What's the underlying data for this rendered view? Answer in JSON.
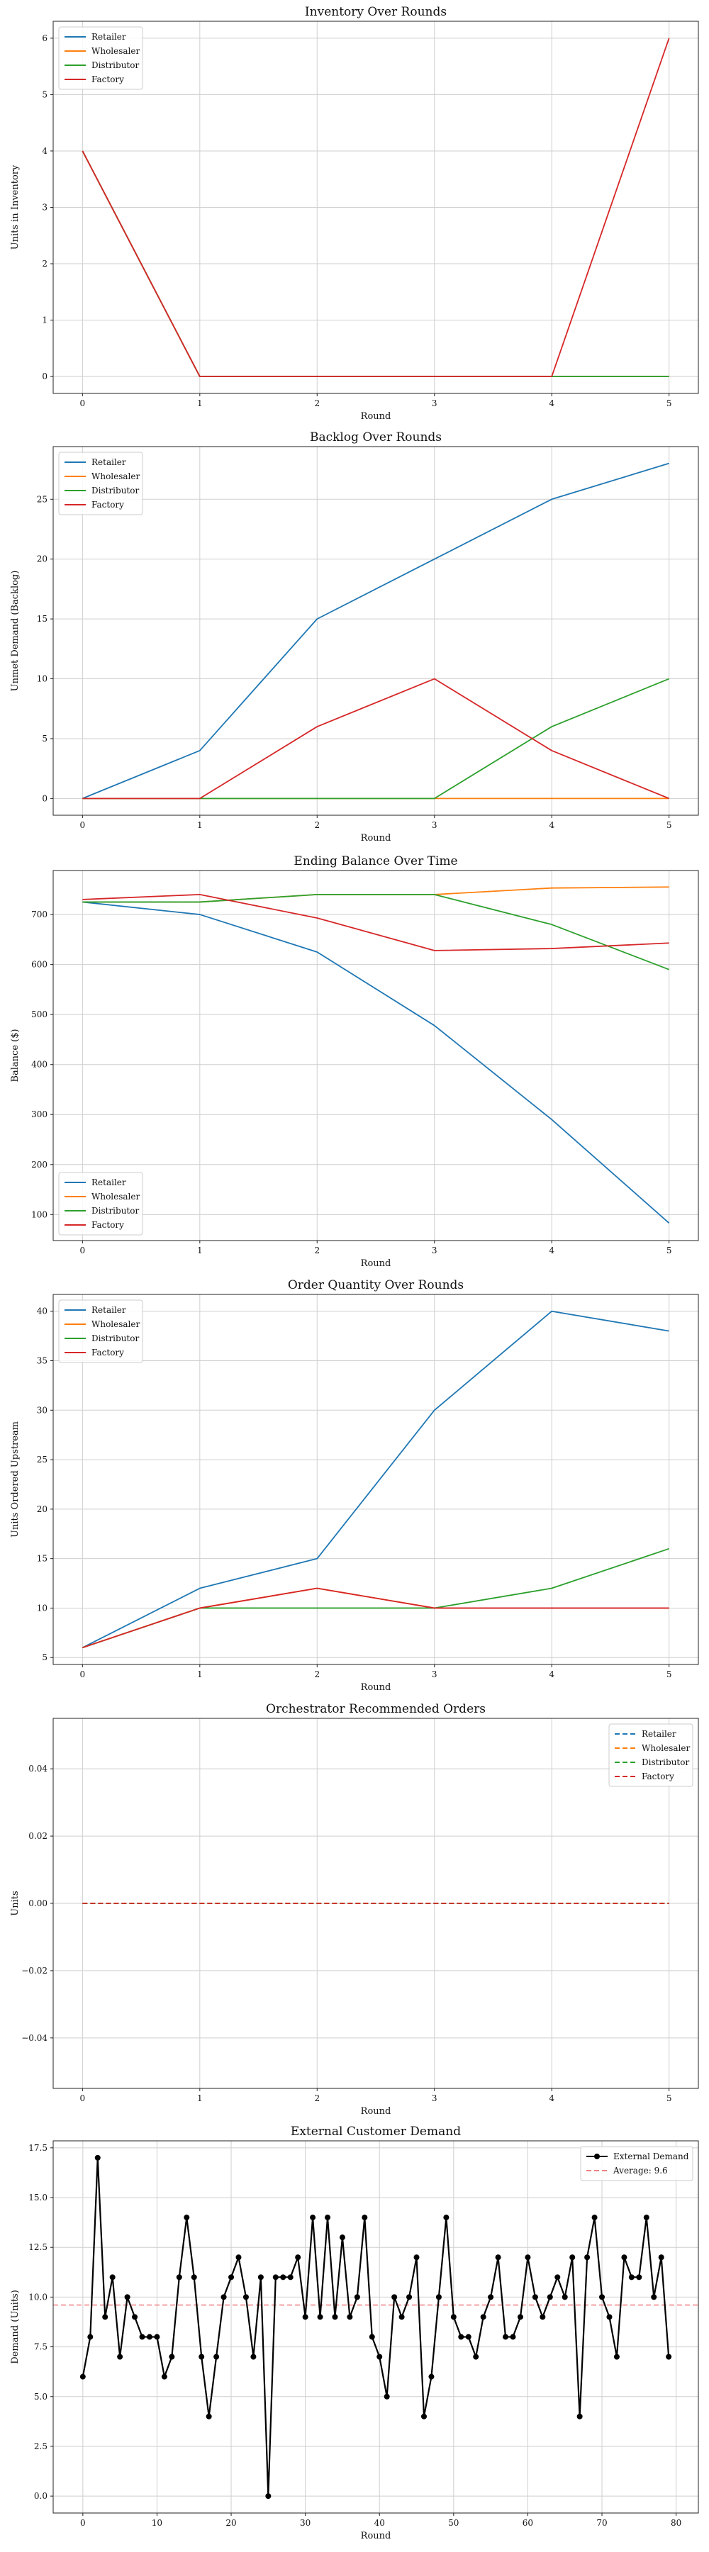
{
  "chart_data": [
    {
      "type": "line",
      "title": "Inventory Over Rounds",
      "xlabel": "Round",
      "ylabel": "Units in Inventory",
      "x": [
        0,
        1,
        2,
        3,
        4,
        5
      ],
      "xlim": [
        -0.25,
        5.25
      ],
      "ylim": [
        -0.3,
        6.3
      ],
      "xticks": [
        0,
        1,
        2,
        3,
        4,
        5
      ],
      "yticks": [
        0,
        1,
        2,
        3,
        4,
        5,
        6
      ],
      "grid": true,
      "legend_position": "top-left",
      "series": [
        {
          "name": "Retailer",
          "color": "#1f77b4",
          "dash": "solid",
          "values": [
            4,
            0,
            0,
            0,
            0,
            0
          ]
        },
        {
          "name": "Wholesaler",
          "color": "#ff7f0e",
          "dash": "solid",
          "values": [
            4,
            0,
            0,
            0,
            0,
            0
          ]
        },
        {
          "name": "Distributor",
          "color": "#2ca02c",
          "dash": "solid",
          "values": [
            4,
            0,
            0,
            0,
            0,
            0
          ]
        },
        {
          "name": "Factory",
          "color": "#d62728",
          "dash": "solid",
          "values": [
            4,
            0,
            0,
            0,
            0,
            6
          ]
        }
      ]
    },
    {
      "type": "line",
      "title": "Backlog Over Rounds",
      "xlabel": "Round",
      "ylabel": "Unmet Demand (Backlog)",
      "x": [
        0,
        1,
        2,
        3,
        4,
        5
      ],
      "xlim": [
        -0.25,
        5.25
      ],
      "ylim": [
        -1.4,
        29.4
      ],
      "xticks": [
        0,
        1,
        2,
        3,
        4,
        5
      ],
      "yticks": [
        0,
        5,
        10,
        15,
        20,
        25
      ],
      "grid": true,
      "legend_position": "top-left",
      "series": [
        {
          "name": "Retailer",
          "color": "#1f77b4",
          "dash": "solid",
          "values": [
            0,
            4,
            15,
            20,
            25,
            28
          ]
        },
        {
          "name": "Wholesaler",
          "color": "#ff7f0e",
          "dash": "solid",
          "values": [
            0,
            0,
            0,
            0,
            0,
            0
          ]
        },
        {
          "name": "Distributor",
          "color": "#2ca02c",
          "dash": "solid",
          "values": [
            0,
            0,
            0,
            0,
            6,
            10
          ]
        },
        {
          "name": "Factory",
          "color": "#d62728",
          "dash": "solid",
          "values": [
            0,
            0,
            6,
            10,
            4,
            0
          ]
        }
      ]
    },
    {
      "type": "line",
      "title": "Ending Balance Over Time",
      "xlabel": "Round",
      "ylabel": "Balance ($)",
      "x": [
        0,
        1,
        2,
        3,
        4,
        5
      ],
      "xlim": [
        -0.25,
        5.25
      ],
      "ylim": [
        48,
        788
      ],
      "xticks": [
        0,
        1,
        2,
        3,
        4,
        5
      ],
      "yticks": [
        100,
        200,
        300,
        400,
        500,
        600,
        700
      ],
      "grid": true,
      "legend_position": "bottom-left",
      "series": [
        {
          "name": "Retailer",
          "color": "#1f77b4",
          "dash": "solid",
          "values": [
            725,
            700,
            625,
            478,
            290,
            83
          ]
        },
        {
          "name": "Wholesaler",
          "color": "#ff7f0e",
          "dash": "solid",
          "values": [
            725,
            725,
            740,
            740,
            753,
            755
          ]
        },
        {
          "name": "Distributor",
          "color": "#2ca02c",
          "dash": "solid",
          "values": [
            725,
            725,
            740,
            740,
            680,
            590
          ]
        },
        {
          "name": "Factory",
          "color": "#d62728",
          "dash": "solid",
          "values": [
            730,
            740,
            693,
            628,
            632,
            643
          ]
        }
      ]
    },
    {
      "type": "line",
      "title": "Order Quantity Over Rounds",
      "xlabel": "Round",
      "ylabel": "Units Ordered Upstream",
      "x": [
        0,
        1,
        2,
        3,
        4,
        5
      ],
      "xlim": [
        -0.25,
        5.25
      ],
      "ylim": [
        4.3,
        41.7
      ],
      "xticks": [
        0,
        1,
        2,
        3,
        4,
        5
      ],
      "yticks": [
        5,
        10,
        15,
        20,
        25,
        30,
        35,
        40
      ],
      "grid": true,
      "legend_position": "top-left",
      "series": [
        {
          "name": "Retailer",
          "color": "#1f77b4",
          "dash": "solid",
          "values": [
            6,
            12,
            15,
            30,
            40,
            38
          ]
        },
        {
          "name": "Wholesaler",
          "color": "#ff7f0e",
          "dash": "solid",
          "values": [
            6,
            10,
            12,
            10,
            10,
            10
          ]
        },
        {
          "name": "Distributor",
          "color": "#2ca02c",
          "dash": "solid",
          "values": [
            6,
            10,
            10,
            10,
            12,
            16
          ]
        },
        {
          "name": "Factory",
          "color": "#d62728",
          "dash": "solid",
          "values": [
            6,
            10,
            12,
            10,
            10,
            10
          ]
        }
      ]
    },
    {
      "type": "line",
      "title": "Orchestrator Recommended Orders",
      "xlabel": "Round",
      "ylabel": "Units",
      "x": [
        0,
        1,
        2,
        3,
        4,
        5
      ],
      "xlim": [
        -0.25,
        5.25
      ],
      "ylim": [
        -0.055,
        0.055
      ],
      "xticks": [
        0,
        1,
        2,
        3,
        4,
        5
      ],
      "yticks": [
        -0.04,
        -0.02,
        0.0,
        0.02,
        0.04
      ],
      "ytick_labels": [
        "−0.04",
        "−0.02",
        "0.00",
        "0.02",
        "0.04"
      ],
      "grid": true,
      "legend_position": "top-right",
      "series": [
        {
          "name": "Retailer",
          "color": "#1f77b4",
          "dash": "dashed",
          "values": [
            0,
            0,
            0,
            0,
            0,
            0
          ]
        },
        {
          "name": "Wholesaler",
          "color": "#ff7f0e",
          "dash": "dashed",
          "values": [
            0,
            0,
            0,
            0,
            0,
            0
          ]
        },
        {
          "name": "Distributor",
          "color": "#2ca02c",
          "dash": "dashed",
          "values": [
            0,
            0,
            0,
            0,
            0,
            0
          ]
        },
        {
          "name": "Factory",
          "color": "#d62728",
          "dash": "dashed",
          "values": [
            0,
            0,
            0,
            0,
            0,
            0
          ]
        }
      ]
    },
    {
      "type": "line",
      "title": "External Customer Demand",
      "xlabel": "Round",
      "ylabel": "Demand (Units)",
      "x": [
        0,
        1,
        2,
        3,
        4,
        5,
        6,
        7,
        8,
        9,
        10,
        11,
        12,
        13,
        14,
        15,
        16,
        17,
        18,
        19,
        20,
        21,
        22,
        23,
        24,
        25,
        26,
        27,
        28,
        29,
        30,
        31,
        32,
        33,
        34,
        35,
        36,
        37,
        38,
        39,
        40,
        41,
        42,
        43,
        44,
        45,
        46,
        47,
        48,
        49,
        50,
        51,
        52,
        53,
        54,
        55,
        56,
        57,
        58,
        59,
        60,
        61,
        62,
        63,
        64,
        65,
        66,
        67,
        68,
        69,
        70,
        71,
        72,
        73,
        74,
        75,
        76,
        77,
        78,
        79
      ],
      "xlim": [
        -4,
        83
      ],
      "ylim": [
        -0.85,
        17.85
      ],
      "xticks": [
        0,
        10,
        20,
        30,
        40,
        50,
        60,
        70,
        80
      ],
      "yticks": [
        0.0,
        2.5,
        5.0,
        7.5,
        10.0,
        12.5,
        15.0,
        17.5
      ],
      "ytick_labels": [
        "0.0",
        "2.5",
        "5.0",
        "7.5",
        "10.0",
        "12.5",
        "15.0",
        "17.5"
      ],
      "grid": true,
      "legend_position": "top-right",
      "series": [
        {
          "name": "External Demand",
          "color": "#000000",
          "dash": "solid",
          "marker": "circle",
          "values": [
            6,
            8,
            17,
            9,
            11,
            7,
            10,
            9,
            8,
            8,
            8,
            6,
            7,
            11,
            14,
            11,
            7,
            4,
            7,
            10,
            11,
            12,
            10,
            7,
            11,
            0,
            11,
            11,
            11,
            12,
            9,
            14,
            9,
            14,
            9,
            13,
            9,
            10,
            14,
            8,
            7,
            5,
            10,
            9,
            10,
            12,
            4,
            6,
            10,
            14,
            9,
            8,
            8,
            7,
            9,
            10,
            12,
            8,
            8,
            9,
            12,
            10,
            9,
            10,
            11,
            10,
            12,
            4,
            12,
            14,
            10,
            9,
            7,
            12,
            11,
            11,
            14,
            10,
            12,
            7
          ]
        }
      ],
      "reference_line": {
        "name": "Average: 9.6",
        "value": 9.6,
        "color": "#f08080",
        "dash": "dashed"
      }
    }
  ]
}
